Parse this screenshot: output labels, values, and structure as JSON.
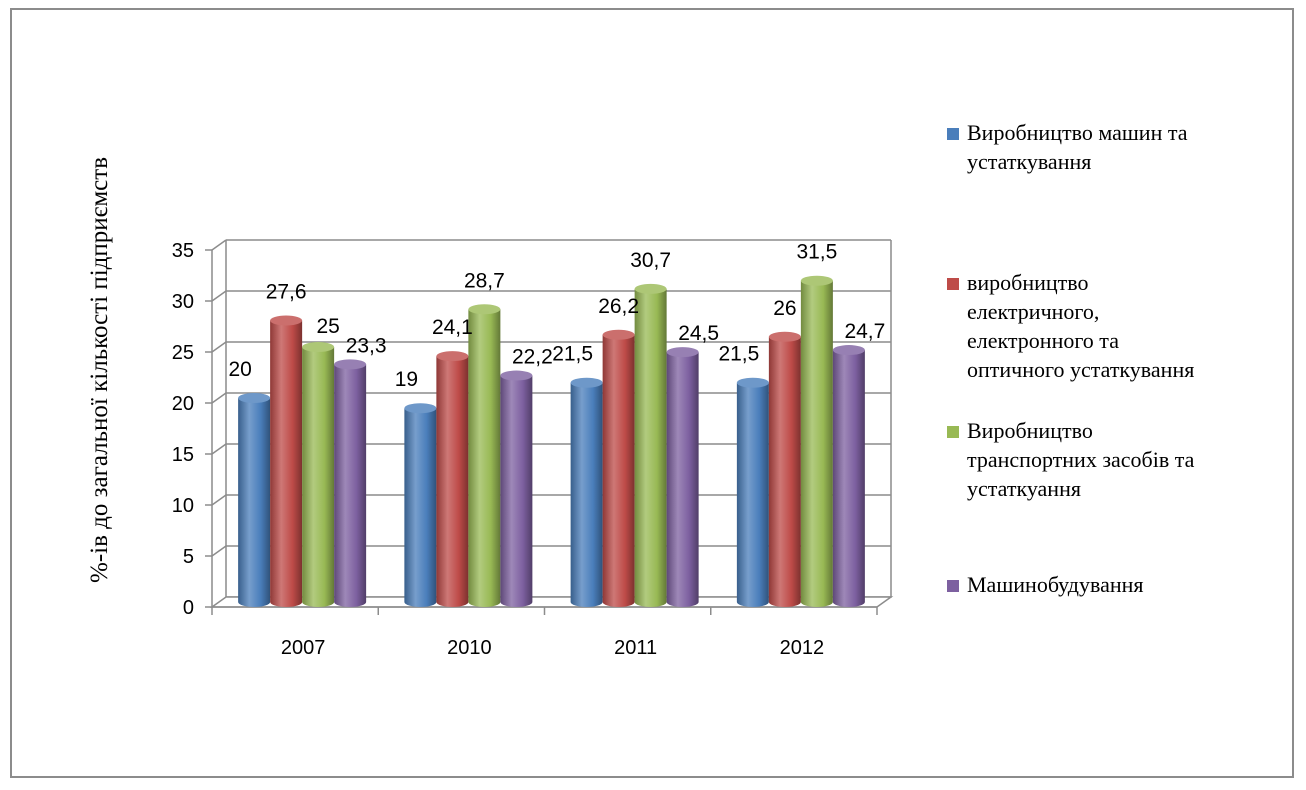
{
  "chart_data": {
    "type": "bar",
    "title": "",
    "xlabel": "",
    "ylabel": "%-ів до загальної кількості підприємств",
    "categories": [
      "2007",
      "2010",
      "2011",
      "2012"
    ],
    "ylim": [
      0,
      35
    ],
    "yticks": [
      0,
      5,
      10,
      15,
      20,
      25,
      30,
      35
    ],
    "grid": true,
    "legend_position": "right",
    "series": [
      {
        "name": "Виробництво машин та устаткування",
        "name_lines": [
          "Виробництво машин та",
          "устаткування"
        ],
        "color": "#4a7ebb",
        "values": [
          20,
          19,
          21.5,
          21.5
        ],
        "labels": [
          "20",
          "19",
          "21,5",
          "21,5"
        ]
      },
      {
        "name": "виробництво електричного, електронного та оптичного устаткування",
        "name_lines": [
          "виробництво",
          "електричного,",
          "електронного та",
          "оптичного устаткування"
        ],
        "color": "#be4b48",
        "values": [
          27.6,
          24.1,
          26.2,
          26
        ],
        "labels": [
          "27,6",
          "24,1",
          "26,2",
          "26"
        ]
      },
      {
        "name": "Виробництво транспортних засобів та устаткуання",
        "name_lines": [
          "Виробництво",
          "транспортних засобів та",
          "устаткуання"
        ],
        "color": "#98b954",
        "values": [
          25,
          28.7,
          30.7,
          31.5
        ],
        "labels": [
          "25",
          "28,7",
          "30,7",
          "31,5"
        ]
      },
      {
        "name": "Машинобудування",
        "name_lines": [
          "Машинобудування"
        ],
        "color": "#7d60a0",
        "values": [
          23.3,
          22.2,
          24.5,
          24.7
        ],
        "labels": [
          "23,3",
          "22,2",
          "24,5",
          "24,7"
        ]
      }
    ]
  }
}
